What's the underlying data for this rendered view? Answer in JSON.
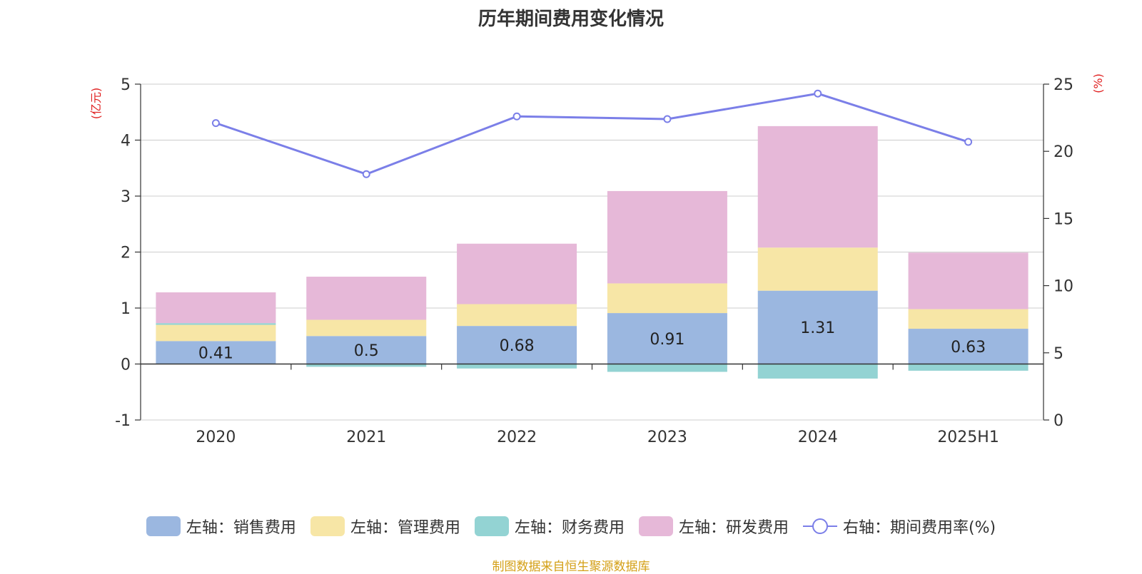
{
  "colors": {
    "sales": "#9bb7e0",
    "admin": "#f7e6a6",
    "finance": "#93d3d3",
    "rnd": "#e6b8d8",
    "rate": "#7b7fe8",
    "unit_label": "#e02020",
    "source": "#d4a017"
  },
  "chart_data": {
    "type": "bar",
    "title": "历年期间费用变化情况",
    "categories": [
      "2020",
      "2021",
      "2022",
      "2023",
      "2024",
      "2025H1"
    ],
    "left_axis": {
      "label": "(亿元)",
      "ylim": [
        -1,
        5
      ],
      "ticks": [
        -1,
        0,
        1,
        2,
        3,
        4,
        5
      ]
    },
    "right_axis": {
      "label": "(%)",
      "ylim": [
        0,
        25
      ],
      "ticks": [
        0,
        5,
        10,
        15,
        20,
        25
      ]
    },
    "grid": true,
    "legend_position": "bottom",
    "series": [
      {
        "key": "sales",
        "name": "左轴：销售费用",
        "type": "bar",
        "axis": "left",
        "values": [
          0.41,
          0.5,
          0.68,
          0.91,
          1.31,
          0.63
        ],
        "labels": [
          "0.41",
          "0.5",
          "0.68",
          "0.91",
          "1.31",
          "0.63"
        ]
      },
      {
        "key": "admin",
        "name": "左轴：管理费用",
        "type": "bar",
        "axis": "left",
        "values": [
          0.29,
          0.29,
          0.39,
          0.53,
          0.77,
          0.35
        ]
      },
      {
        "key": "finance",
        "name": "左轴：财务费用",
        "type": "bar",
        "axis": "left",
        "values": [
          0.03,
          -0.05,
          -0.08,
          -0.14,
          -0.26,
          -0.12
        ]
      },
      {
        "key": "rnd",
        "name": "左轴：研发费用",
        "type": "bar",
        "axis": "left",
        "values": [
          0.55,
          0.77,
          1.08,
          1.65,
          2.17,
          1.01
        ]
      },
      {
        "key": "rate",
        "name": "右轴：期间费用率(%)",
        "type": "line",
        "axis": "right",
        "values": [
          22.1,
          18.3,
          22.6,
          22.4,
          24.3,
          20.7
        ]
      }
    ]
  },
  "source": "制图数据来自恒生聚源数据库"
}
